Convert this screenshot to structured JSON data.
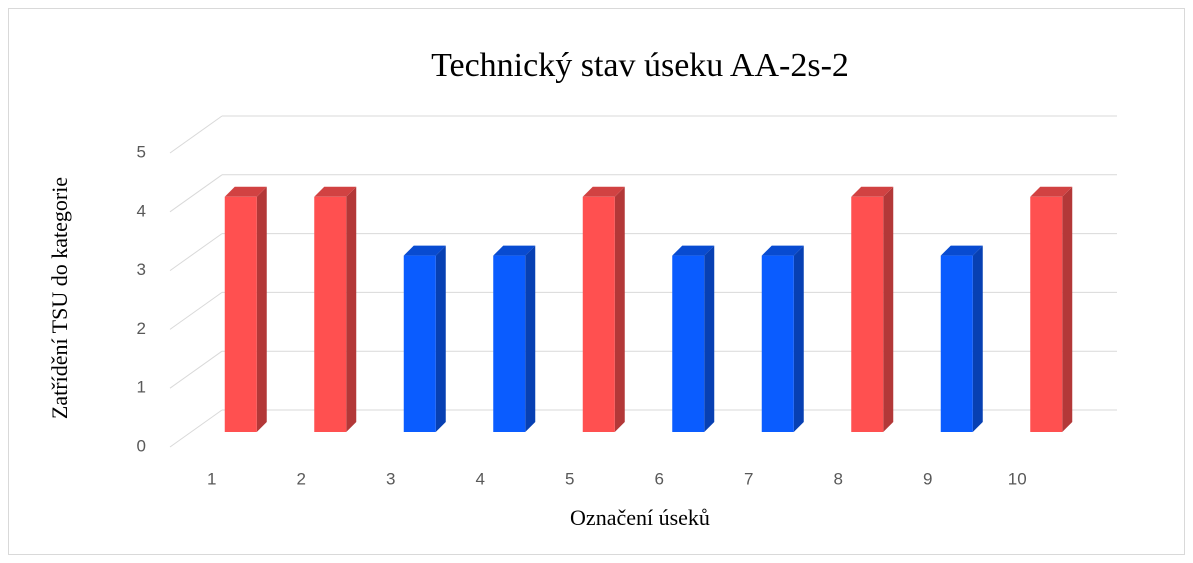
{
  "chart_data": {
    "type": "bar",
    "title": "Technický stav úseku AA-2s-2",
    "xlabel": "Označení úseků",
    "ylabel": "Zatřídění TSU do kategorie",
    "categories": [
      "1",
      "2",
      "3",
      "4",
      "5",
      "6",
      "7",
      "8",
      "9",
      "10"
    ],
    "values": [
      4,
      4,
      3,
      3,
      4,
      3,
      3,
      4,
      3,
      4
    ],
    "colors": [
      "#ff5050",
      "#ff5050",
      "#0a5cff",
      "#0a5cff",
      "#ff5050",
      "#0a5cff",
      "#0a5cff",
      "#ff5050",
      "#0a5cff",
      "#ff5050"
    ],
    "ylim": [
      0,
      5
    ],
    "yticks": [
      0,
      1,
      2,
      3,
      4,
      5
    ],
    "grid": true
  }
}
